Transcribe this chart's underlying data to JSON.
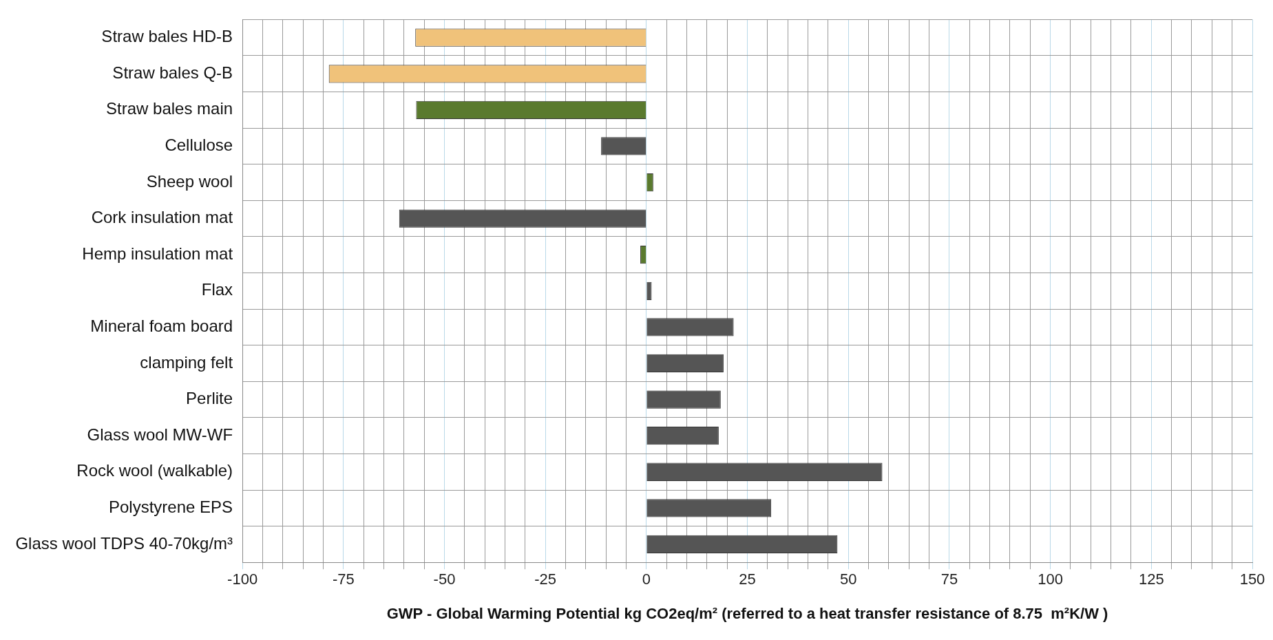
{
  "chart_data": {
    "type": "bar",
    "orientation": "horizontal",
    "categories": [
      "Straw bales HD-B",
      "Straw bales Q-B",
      "Straw bales main",
      "Cellulose",
      "Sheep wool",
      "Cork insulation mat",
      "Hemp insulation mat",
      "Flax",
      "Mineral foam board",
      "clamping felt",
      "Perlite",
      "Glass wool MW-WF",
      "Rock wool (walkable)",
      "Polystyrene EPS",
      "Glass wool TDPS 40-70kg/m³"
    ],
    "values": [
      -57.2,
      -78.6,
      -57,
      -11.2,
      1.7,
      -61.2,
      -1.5,
      1.3,
      21.6,
      19.1,
      18.4,
      17.9,
      58.4,
      30.9,
      47.3
    ],
    "colors": [
      "#f0c27a",
      "#f0c27a",
      "#5a7a2e",
      "#555555",
      "#5a7a2e",
      "#555555",
      "#5a7a2e",
      "#555555",
      "#555555",
      "#555555",
      "#555555",
      "#555555",
      "#555555",
      "#555555",
      "#555555"
    ],
    "xlabel": "GWP - Global Warming Potential kg CO2eq/m² (referred to a heat transfer resistance of 8.75  m²K/W )",
    "xlim": [
      -100,
      150
    ],
    "xticks": [
      -100,
      {
        "value": -95,
        "label": null
      },
      {
        "value": -90,
        "label": null
      },
      {
        "value": -85,
        "label": null
      },
      {
        "value": -80,
        "label": null
      },
      -75,
      {
        "value": -70,
        "label": null
      },
      {
        "value": -65,
        "label": null
      },
      {
        "value": -60,
        "label": null
      },
      {
        "value": -55,
        "label": null
      },
      -50,
      {
        "value": -45,
        "label": null
      },
      {
        "value": -40,
        "label": null
      },
      {
        "value": -35,
        "label": null
      },
      {
        "value": -30,
        "label": null
      },
      -25,
      {
        "value": -20,
        "label": null
      },
      {
        "value": -15,
        "label": null
      },
      {
        "value": -10,
        "label": null
      },
      {
        "value": -5,
        "label": null
      },
      0,
      {
        "value": 5,
        "label": null
      },
      {
        "value": 10,
        "label": null
      },
      {
        "value": 15,
        "label": null
      },
      {
        "value": 20,
        "label": null
      },
      25,
      {
        "value": 30,
        "label": null
      },
      {
        "value": 35,
        "label": null
      },
      {
        "value": 40,
        "label": null
      },
      {
        "value": 45,
        "label": null
      },
      50,
      {
        "value": 55,
        "label": null
      },
      {
        "value": 60,
        "label": null
      },
      {
        "value": 65,
        "label": null
      },
      {
        "value": 70,
        "label": null
      },
      75,
      {
        "value": 80,
        "label": null
      },
      {
        "value": 85,
        "label": null
      },
      {
        "value": 90,
        "label": null
      },
      {
        "value": 95,
        "label": null
      },
      100,
      {
        "value": 105,
        "label": null
      },
      {
        "value": 110,
        "label": null
      },
      {
        "value": 115,
        "label": null
      },
      {
        "value": 120,
        "label": null
      },
      125,
      {
        "value": 130,
        "label": null
      },
      {
        "value": 135,
        "label": null
      },
      {
        "value": 140,
        "label": null
      },
      {
        "value": 145,
        "label": null
      },
      150
    ],
    "grid": true,
    "legend": false
  }
}
